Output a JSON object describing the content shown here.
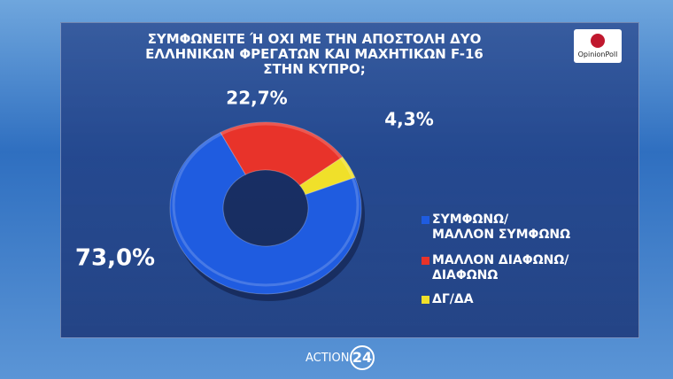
{
  "chart_data": {
    "type": "donut",
    "title": "ΣΥΜΦΩΝΕΙΤΕ Ή ΟΧΙ ΜΕ ΤΗΝ ΑΠΟΣΤΟΛΗ ΔΥΟ\nΕΛΛΗΝΙΚΩΝ ΦΡΕΓΑΤΩΝ ΚΑΙ ΜΑΧΗΤΙΚΩΝ F-16\nΣΤΗΝ ΚΥΠΡΟ;",
    "series": [
      {
        "name": "ΣΥΜΦΩΝΩ/\nΜΑΛΛΟΝ ΣΥΜΦΩΝΩ",
        "color": "#1f5ce0",
        "value": 73.0,
        "value_label": "73,0%"
      },
      {
        "name": "ΜΑΛΛΟΝ ΔΙΑΦΩΝΩ/\nΔΙΑΦΩΝΩ",
        "color": "#e8332a",
        "value": 22.7,
        "value_label": "22,7%"
      },
      {
        "name": "ΔΓ/ΔΑ",
        "color": "#f0e02a",
        "value": 4.3,
        "value_label": "4,3%"
      }
    ]
  },
  "logos": {
    "pollster": "OpinionPoll",
    "channel": "ACTION",
    "channel_number": "24"
  }
}
